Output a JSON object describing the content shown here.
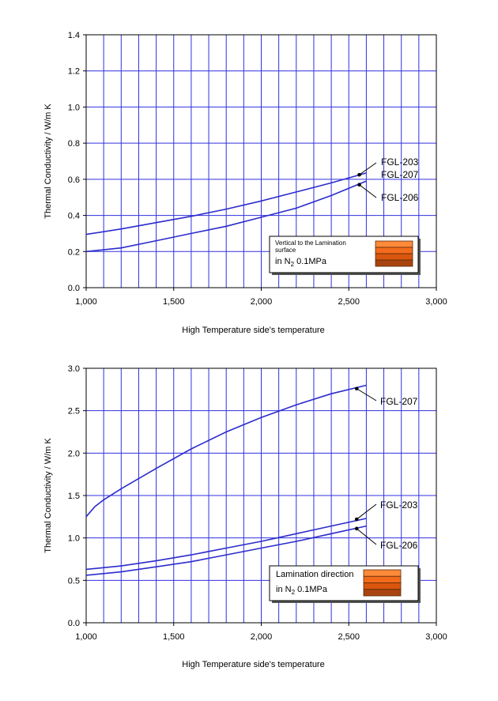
{
  "chart_data": [
    {
      "type": "line",
      "xlabel": "High Temperature side's temperature",
      "ylabel": "Thermal Conductivity   /   W/m K",
      "xlim": [
        1000,
        3000
      ],
      "ylim": [
        0,
        1.4
      ],
      "xticks": [
        "1,000",
        "1,500",
        "2,000",
        "2,500",
        "3,000"
      ],
      "yticks": [
        "0.0",
        "0.2",
        "0.4",
        "0.6",
        "0.8",
        "1.0",
        "1.2",
        "1.4"
      ],
      "grid": true,
      "legend_box": {
        "line1": "Vertical to the Lamination",
        "line2": "surface",
        "line3a": "in N",
        "line3sub": "2",
        "line3b": " 0.1MPa"
      },
      "series": [
        {
          "name": "FGL-203",
          "color": "#2b2bcc",
          "x": [
            1000,
            1200,
            1400,
            1600,
            1800,
            2000,
            2200,
            2400,
            2600
          ],
          "y": [
            0.295,
            0.325,
            0.36,
            0.395,
            0.435,
            0.48,
            0.53,
            0.58,
            0.635
          ],
          "marker_x": 2560,
          "marker_y": 0.625
        },
        {
          "name": "FGL-207",
          "color": "#2b2bcc",
          "x": [
            1000,
            1200,
            1400,
            1600,
            1800,
            2000,
            2200,
            2400,
            2600
          ],
          "y": [
            0.295,
            0.325,
            0.36,
            0.395,
            0.435,
            0.48,
            0.53,
            0.58,
            0.635
          ],
          "marker_x": 2560,
          "marker_y": 0.625
        },
        {
          "name": "FGL-206",
          "color": "#2b2bcc",
          "x": [
            1000,
            1200,
            1400,
            1600,
            1800,
            2000,
            2200,
            2400,
            2600
          ],
          "y": [
            0.2,
            0.22,
            0.26,
            0.3,
            0.34,
            0.39,
            0.44,
            0.51,
            0.59
          ],
          "marker_x": 2560,
          "marker_y": 0.57
        }
      ]
    },
    {
      "type": "line",
      "xlabel": "High Temperature side's temperature",
      "ylabel": "Thermal Conductivity   /   W/m K",
      "xlim": [
        1000,
        3000
      ],
      "ylim": [
        0,
        3.0
      ],
      "xticks": [
        "1,000",
        "1,500",
        "2,000",
        "2,500",
        "3,000"
      ],
      "yticks": [
        "0.0",
        "0.5",
        "1.0",
        "1.5",
        "2.0",
        "2.5",
        "3.0"
      ],
      "grid": true,
      "legend_box": {
        "line1": "Lamination direction",
        "line3a": "in N",
        "line3sub": "2",
        "line3b": " 0.1MPa"
      },
      "series": [
        {
          "name": "FGL-207",
          "color": "#2b2bcc",
          "x": [
            1000,
            1050,
            1100,
            1200,
            1400,
            1600,
            1800,
            2000,
            2200,
            2400,
            2600
          ],
          "y": [
            1.25,
            1.37,
            1.45,
            1.58,
            1.82,
            2.05,
            2.25,
            2.42,
            2.57,
            2.7,
            2.8
          ],
          "marker_x": 2545,
          "marker_y": 2.76
        },
        {
          "name": "FGL-203",
          "color": "#2b2bcc",
          "x": [
            1000,
            1200,
            1400,
            1600,
            1800,
            2000,
            2200,
            2400,
            2600
          ],
          "y": [
            0.63,
            0.67,
            0.73,
            0.8,
            0.88,
            0.96,
            1.05,
            1.14,
            1.23
          ],
          "marker_x": 2545,
          "marker_y": 1.22
        },
        {
          "name": "FGL-206",
          "color": "#2b2bcc",
          "x": [
            1000,
            1200,
            1400,
            1600,
            1800,
            2000,
            2200,
            2400,
            2600
          ],
          "y": [
            0.56,
            0.6,
            0.66,
            0.72,
            0.8,
            0.88,
            0.96,
            1.05,
            1.14
          ],
          "marker_x": 2545,
          "marker_y": 1.11
        }
      ]
    }
  ]
}
